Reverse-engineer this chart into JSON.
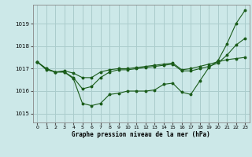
{
  "title": "Graphe pression niveau de la mer (hPa)",
  "bg_color": "#cce8e8",
  "grid_color": "#aacccc",
  "line_color": "#1a5c1a",
  "marker_color": "#1a5c1a",
  "xlim": [
    -0.5,
    23.5
  ],
  "ylim": [
    1014.6,
    1019.85
  ],
  "yticks": [
    1015,
    1016,
    1017,
    1018,
    1019
  ],
  "xticks": [
    0,
    1,
    2,
    3,
    4,
    5,
    6,
    7,
    8,
    9,
    10,
    11,
    12,
    13,
    14,
    15,
    16,
    17,
    18,
    19,
    20,
    21,
    22,
    23
  ],
  "series1": [
    1017.3,
    1017.0,
    1016.85,
    1016.85,
    1016.55,
    1015.45,
    1015.35,
    1015.45,
    1015.85,
    1015.9,
    1016.0,
    1016.0,
    1016.0,
    1016.05,
    1016.3,
    1016.35,
    1015.95,
    1015.85,
    1016.45,
    1017.05,
    1017.35,
    1018.1,
    1019.0,
    1019.6
  ],
  "series2": [
    1017.3,
    1016.95,
    1016.85,
    1016.9,
    1016.8,
    1016.6,
    1016.6,
    1016.85,
    1016.95,
    1017.0,
    1017.0,
    1017.05,
    1017.1,
    1017.15,
    1017.2,
    1017.25,
    1016.95,
    1017.0,
    1017.1,
    1017.2,
    1017.3,
    1017.4,
    1017.45,
    1017.5
  ],
  "series3": [
    1017.3,
    1017.0,
    1016.85,
    1016.85,
    1016.6,
    1016.1,
    1016.2,
    1016.6,
    1016.85,
    1016.95,
    1016.95,
    1017.0,
    1017.05,
    1017.1,
    1017.15,
    1017.2,
    1016.9,
    1016.9,
    1017.0,
    1017.1,
    1017.25,
    1017.6,
    1018.05,
    1018.35
  ]
}
